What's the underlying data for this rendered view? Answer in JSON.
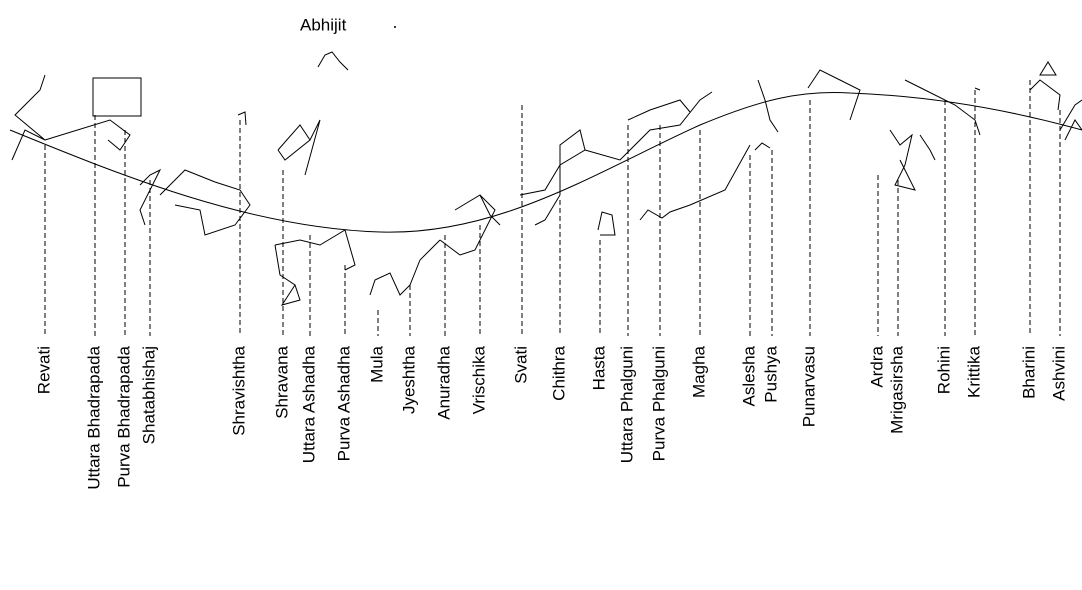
{
  "abhijit": "Abhijit",
  "nakshatras": [
    "Revati",
    "Uttara Bhadrapada",
    "Purva Bhadrapada",
    "Shatabhishaj",
    "Shravishtha",
    "Shravana",
    "Uttara Ashadha",
    "Purva Ashadha",
    "Mula",
    "Jyeshtha",
    "Anuradha",
    "Vrischika",
    "Svati",
    "Chithra",
    "Hasta",
    "Uttara Phalguni",
    "Purva Phalguni",
    "Magha",
    "Aslesha",
    "Pushya",
    "Punarvasu",
    "Ardra",
    "Mrigasirsha",
    "Rohini",
    "Krittika",
    "Bharini",
    "Ashvini"
  ]
}
